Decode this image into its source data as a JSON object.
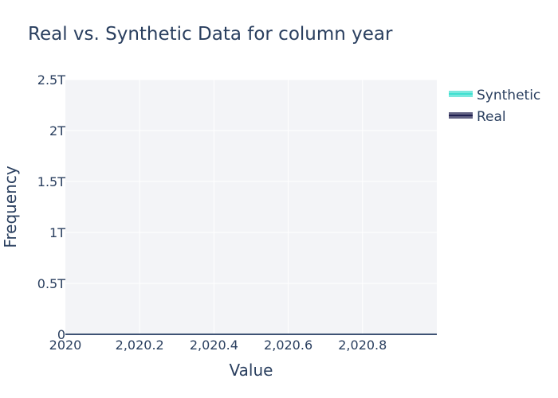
{
  "chart_data": {
    "type": "area",
    "title": "Real vs. Synthetic Data for column year",
    "xlabel": "Value",
    "ylabel": "Frequency",
    "xlim": [
      2020,
      2021
    ],
    "ylim": [
      0,
      2500000000000
    ],
    "x_ticks": [
      "2020",
      "2,020.2",
      "2,020.4",
      "2,020.6",
      "2,020.8"
    ],
    "y_ticks": [
      "0",
      "0.5T",
      "1T",
      "1.5T",
      "2T",
      "2.5T"
    ],
    "grid": true,
    "legend_position": "top-right",
    "legend": [
      "Synthetic",
      "Real"
    ],
    "series": [
      {
        "name": "Synthetic",
        "color": "#40e0d0",
        "x": [
          2020
        ],
        "y": [
          0
        ]
      },
      {
        "name": "Real",
        "color": "#1f1f4f",
        "x": [
          2020
        ],
        "y": [
          0
        ]
      }
    ]
  },
  "colors": {
    "plot_bg": "#f3f4f7",
    "grid": "#ffffff",
    "text": "#2a3f5f"
  }
}
